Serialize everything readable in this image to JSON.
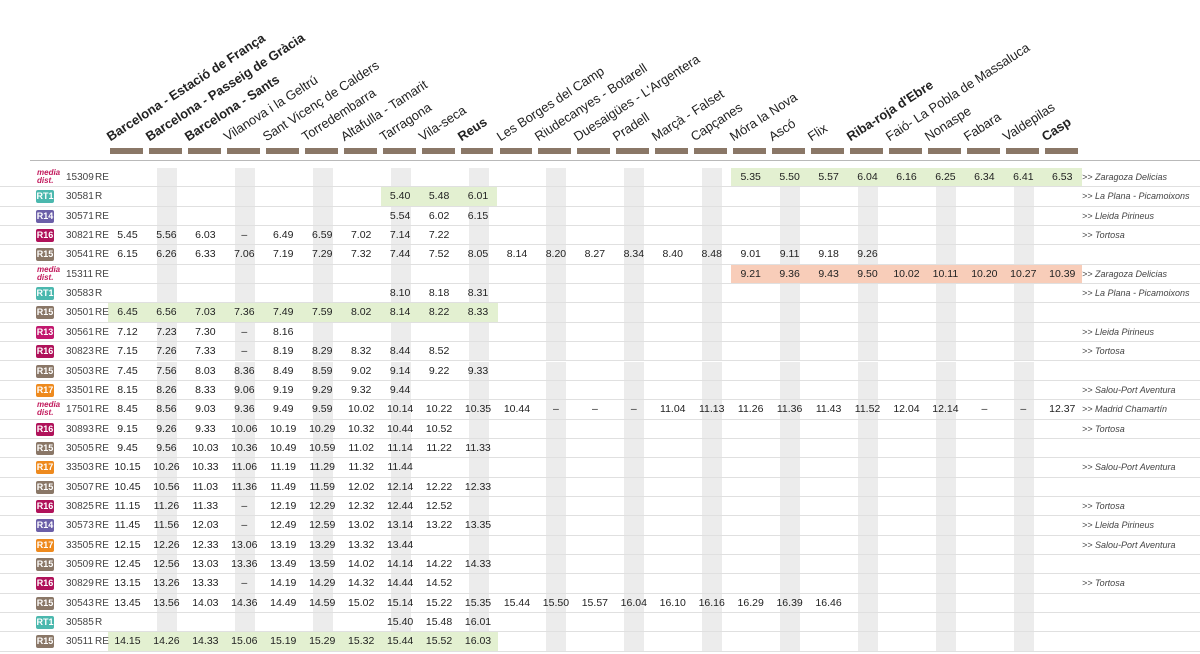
{
  "stations": [
    {
      "name": "Barcelona - Estació de França",
      "bold": true
    },
    {
      "name": "Barcelona - Passeig de Gràcia",
      "bold": true
    },
    {
      "name": "Barcelona - Sants",
      "bold": true
    },
    {
      "name": "Vilanova i la Geltrú",
      "bold": false
    },
    {
      "name": "Sant Vicenç de Calders",
      "bold": false
    },
    {
      "name": "Torredembarra",
      "bold": false
    },
    {
      "name": "Altafulla - Tamarit",
      "bold": false
    },
    {
      "name": "Tarragona",
      "bold": false
    },
    {
      "name": "Vila-seca",
      "bold": false
    },
    {
      "name": "Reus",
      "bold": true
    },
    {
      "name": "Les Borges del Camp",
      "bold": false
    },
    {
      "name": "Riudecanyes - Botarell",
      "bold": false
    },
    {
      "name": "Duesaigües - L'Argentera",
      "bold": false
    },
    {
      "name": "Pradell",
      "bold": false
    },
    {
      "name": "Marçà - Falset",
      "bold": false
    },
    {
      "name": "Capçanes",
      "bold": false
    },
    {
      "name": "Móra la Nova",
      "bold": false
    },
    {
      "name": "Ascó",
      "bold": false
    },
    {
      "name": "Flix",
      "bold": false
    },
    {
      "name": "Riba-roja d'Ebre",
      "bold": true
    },
    {
      "name": "Faió- La Pobla de Massaluca",
      "bold": false
    },
    {
      "name": "Nonaspe",
      "bold": false
    },
    {
      "name": "Fabara",
      "bold": false
    },
    {
      "name": "Valdepilas",
      "bold": false
    },
    {
      "name": "Casp",
      "bold": true
    }
  ],
  "colors": {
    "RT1": "#4bb8ae",
    "R14": "#6b5fa8",
    "R16": "#b0125a",
    "R15": "#8a7767",
    "R13": "#c2186e",
    "R17": "#ee8a1e",
    "cercanias": "#c2185b",
    "green": "#e3f0d1",
    "orange": "#f8cdb9",
    "tick": "#8a7767"
  },
  "ave_logo": {
    "line1": "media",
    "line2": "dist."
  },
  "rows": [
    {
      "line": "cercanias",
      "number": "15309",
      "type": "RE",
      "times": [
        "",
        "",
        "",
        "",
        "",
        "",
        "",
        "",
        "",
        "",
        "",
        "",
        "",
        "",
        "",
        "",
        "5.35",
        "5.50",
        "5.57",
        "6.04",
        "6.16",
        "6.25",
        "6.34",
        "6.41",
        "6.53"
      ],
      "dest": ">> Zaragoza Delicias",
      "hl": "green",
      "hlFrom": 16,
      "hlTo": 24
    },
    {
      "line": "RT1",
      "number": "30581",
      "type": "R",
      "times": [
        "",
        "",
        "",
        "",
        "",
        "",
        "",
        "5.40",
        "5.48",
        "6.01",
        "",
        "",
        "",
        "",
        "",
        "",
        "",
        "",
        "",
        "",
        "",
        "",
        "",
        "",
        ""
      ],
      "dest": ">> La Plana - Picamoixons",
      "hl": "green",
      "hlFrom": 7,
      "hlTo": 9
    },
    {
      "line": "R14",
      "number": "30571",
      "type": "RE",
      "times": [
        "",
        "",
        "",
        "",
        "",
        "",
        "",
        "5.54",
        "6.02",
        "6.15",
        "",
        "",
        "",
        "",
        "",
        "",
        "",
        "",
        "",
        "",
        "",
        "",
        "",
        "",
        ""
      ],
      "dest": ">> Lleida Pirineus",
      "hl": "",
      "hlFrom": 0,
      "hlTo": 0
    },
    {
      "line": "R16",
      "number": "30821",
      "type": "RE",
      "times": [
        "5.45",
        "5.56",
        "6.03",
        "–",
        "6.49",
        "6.59",
        "7.02",
        "7.14",
        "7.22",
        "",
        "",
        "",
        "",
        "",
        "",
        "",
        "",
        "",
        "",
        "",
        "",
        "",
        "",
        "",
        ""
      ],
      "dest": ">> Tortosa",
      "hl": "",
      "hlFrom": 0,
      "hlTo": 0
    },
    {
      "line": "R15",
      "number": "30541",
      "type": "RE",
      "times": [
        "6.15",
        "6.26",
        "6.33",
        "7.06",
        "7.19",
        "7.29",
        "7.32",
        "7.44",
        "7.52",
        "8.05",
        "8.14",
        "8.20",
        "8.27",
        "8.34",
        "8.40",
        "8.48",
        "9.01",
        "9.11",
        "9.18",
        "9.26",
        "",
        "",
        "",
        "",
        ""
      ],
      "dest": "",
      "hl": "",
      "hlFrom": 0,
      "hlTo": 0
    },
    {
      "line": "cercanias",
      "number": "15311",
      "type": "RE",
      "times": [
        "",
        "",
        "",
        "",
        "",
        "",
        "",
        "",
        "",
        "",
        "",
        "",
        "",
        "",
        "",
        "",
        "9.21",
        "9.36",
        "9.43",
        "9.50",
        "10.02",
        "10.11",
        "10.20",
        "10.27",
        "10.39"
      ],
      "dest": ">> Zaragoza Delicias",
      "hl": "orange",
      "hlFrom": 16,
      "hlTo": 24
    },
    {
      "line": "RT1",
      "number": "30583",
      "type": "R",
      "times": [
        "",
        "",
        "",
        "",
        "",
        "",
        "",
        "8.10",
        "8.18",
        "8.31",
        "",
        "",
        "",
        "",
        "",
        "",
        "",
        "",
        "",
        "",
        "",
        "",
        "",
        "",
        ""
      ],
      "dest": ">> La Plana - Picamoixons",
      "hl": "",
      "hlFrom": 0,
      "hlTo": 0
    },
    {
      "line": "R15",
      "number": "30501",
      "type": "RE",
      "times": [
        "6.45",
        "6.56",
        "7.03",
        "7.36",
        "7.49",
        "7.59",
        "8.02",
        "8.14",
        "8.22",
        "8.33",
        "",
        "",
        "",
        "",
        "",
        "",
        "",
        "",
        "",
        "",
        "",
        "",
        "",
        "",
        ""
      ],
      "dest": "",
      "hl": "green",
      "hlFrom": 0,
      "hlTo": 9
    },
    {
      "line": "R13",
      "number": "30561",
      "type": "RE",
      "times": [
        "7.12",
        "7.23",
        "7.30",
        "–",
        "8.16",
        "",
        "",
        "",
        "",
        "",
        "",
        "",
        "",
        "",
        "",
        "",
        "",
        "",
        "",
        "",
        "",
        "",
        "",
        "",
        ""
      ],
      "dest": ">> Lleida Pirineus",
      "hl": "",
      "hlFrom": 0,
      "hlTo": 0
    },
    {
      "line": "R16",
      "number": "30823",
      "type": "RE",
      "times": [
        "7.15",
        "7.26",
        "7.33",
        "–",
        "8.19",
        "8.29",
        "8.32",
        "8.44",
        "8.52",
        "",
        "",
        "",
        "",
        "",
        "",
        "",
        "",
        "",
        "",
        "",
        "",
        "",
        "",
        "",
        ""
      ],
      "dest": ">> Tortosa",
      "hl": "",
      "hlFrom": 0,
      "hlTo": 0
    },
    {
      "line": "R15",
      "number": "30503",
      "type": "RE",
      "times": [
        "7.45",
        "7.56",
        "8.03",
        "8.36",
        "8.49",
        "8.59",
        "9.02",
        "9.14",
        "9.22",
        "9.33",
        "",
        "",
        "",
        "",
        "",
        "",
        "",
        "",
        "",
        "",
        "",
        "",
        "",
        "",
        ""
      ],
      "dest": "",
      "hl": "",
      "hlFrom": 0,
      "hlTo": 0
    },
    {
      "line": "R17",
      "number": "33501",
      "type": "RE",
      "times": [
        "8.15",
        "8.26",
        "8.33",
        "9.06",
        "9.19",
        "9.29",
        "9.32",
        "9.44",
        "",
        "",
        "",
        "",
        "",
        "",
        "",
        "",
        "",
        "",
        "",
        "",
        "",
        "",
        "",
        "",
        ""
      ],
      "dest": ">> Salou-Port Aventura",
      "hl": "",
      "hlFrom": 0,
      "hlTo": 0
    },
    {
      "line": "cercanias",
      "number": "17501",
      "type": "RE",
      "times": [
        "8.45",
        "8.56",
        "9.03",
        "9.36",
        "9.49",
        "9.59",
        "10.02",
        "10.14",
        "10.22",
        "10.35",
        "10.44",
        "–",
        "–",
        "–",
        "11.04",
        "11.13",
        "11.26",
        "11.36",
        "11.43",
        "11.52",
        "12.04",
        "12.14",
        "–",
        "–",
        "12.37"
      ],
      "dest": ">> Madrid Chamartín",
      "hl": "",
      "hlFrom": 0,
      "hlTo": 0
    },
    {
      "line": "R16",
      "number": "30893",
      "type": "RE",
      "times": [
        "9.15",
        "9.26",
        "9.33",
        "10.06",
        "10.19",
        "10.29",
        "10.32",
        "10.44",
        "10.52",
        "",
        "",
        "",
        "",
        "",
        "",
        "",
        "",
        "",
        "",
        "",
        "",
        "",
        "",
        "",
        ""
      ],
      "dest": ">> Tortosa",
      "hl": "",
      "hlFrom": 0,
      "hlTo": 0
    },
    {
      "line": "R15",
      "number": "30505",
      "type": "RE",
      "times": [
        "9.45",
        "9.56",
        "10.03",
        "10.36",
        "10.49",
        "10.59",
        "11.02",
        "11.14",
        "11.22",
        "11.33",
        "",
        "",
        "",
        "",
        "",
        "",
        "",
        "",
        "",
        "",
        "",
        "",
        "",
        "",
        ""
      ],
      "dest": "",
      "hl": "",
      "hlFrom": 0,
      "hlTo": 0
    },
    {
      "line": "R17",
      "number": "33503",
      "type": "RE",
      "times": [
        "10.15",
        "10.26",
        "10.33",
        "11.06",
        "11.19",
        "11.29",
        "11.32",
        "11.44",
        "",
        "",
        "",
        "",
        "",
        "",
        "",
        "",
        "",
        "",
        "",
        "",
        "",
        "",
        "",
        "",
        ""
      ],
      "dest": ">> Salou-Port Aventura",
      "hl": "",
      "hlFrom": 0,
      "hlTo": 0
    },
    {
      "line": "R15",
      "number": "30507",
      "type": "RE",
      "times": [
        "10.45",
        "10.56",
        "11.03",
        "11.36",
        "11.49",
        "11.59",
        "12.02",
        "12.14",
        "12.22",
        "12.33",
        "",
        "",
        "",
        "",
        "",
        "",
        "",
        "",
        "",
        "",
        "",
        "",
        "",
        "",
        ""
      ],
      "dest": "",
      "hl": "",
      "hlFrom": 0,
      "hlTo": 0
    },
    {
      "line": "R16",
      "number": "30825",
      "type": "RE",
      "times": [
        "11.15",
        "11.26",
        "11.33",
        "–",
        "12.19",
        "12.29",
        "12.32",
        "12.44",
        "12.52",
        "",
        "",
        "",
        "",
        "",
        "",
        "",
        "",
        "",
        "",
        "",
        "",
        "",
        "",
        "",
        ""
      ],
      "dest": ">> Tortosa",
      "hl": "",
      "hlFrom": 0,
      "hlTo": 0
    },
    {
      "line": "R14",
      "number": "30573",
      "type": "RE",
      "times": [
        "11.45",
        "11.56",
        "12.03",
        "–",
        "12.49",
        "12.59",
        "13.02",
        "13.14",
        "13.22",
        "13.35",
        "",
        "",
        "",
        "",
        "",
        "",
        "",
        "",
        "",
        "",
        "",
        "",
        "",
        "",
        ""
      ],
      "dest": ">> Lleida Pirineus",
      "hl": "",
      "hlFrom": 0,
      "hlTo": 0
    },
    {
      "line": "R17",
      "number": "33505",
      "type": "RE",
      "times": [
        "12.15",
        "12.26",
        "12.33",
        "13.06",
        "13.19",
        "13.29",
        "13.32",
        "13.44",
        "",
        "",
        "",
        "",
        "",
        "",
        "",
        "",
        "",
        "",
        "",
        "",
        "",
        "",
        "",
        "",
        ""
      ],
      "dest": ">> Salou-Port Aventura",
      "hl": "",
      "hlFrom": 0,
      "hlTo": 0
    },
    {
      "line": "R15",
      "number": "30509",
      "type": "RE",
      "times": [
        "12.45",
        "12.56",
        "13.03",
        "13.36",
        "13.49",
        "13.59",
        "14.02",
        "14.14",
        "14.22",
        "14.33",
        "",
        "",
        "",
        "",
        "",
        "",
        "",
        "",
        "",
        "",
        "",
        "",
        "",
        "",
        ""
      ],
      "dest": "",
      "hl": "",
      "hlFrom": 0,
      "hlTo": 0
    },
    {
      "line": "R16",
      "number": "30829",
      "type": "RE",
      "times": [
        "13.15",
        "13.26",
        "13.33",
        "–",
        "14.19",
        "14.29",
        "14.32",
        "14.44",
        "14.52",
        "",
        "",
        "",
        "",
        "",
        "",
        "",
        "",
        "",
        "",
        "",
        "",
        "",
        "",
        "",
        ""
      ],
      "dest": ">> Tortosa",
      "hl": "",
      "hlFrom": 0,
      "hlTo": 0
    },
    {
      "line": "R15",
      "number": "30543",
      "type": "RE",
      "times": [
        "13.45",
        "13.56",
        "14.03",
        "14.36",
        "14.49",
        "14.59",
        "15.02",
        "15.14",
        "15.22",
        "15.35",
        "15.44",
        "15.50",
        "15.57",
        "16.04",
        "16.10",
        "16.16",
        "16.29",
        "16.39",
        "16.46",
        "",
        "",
        "",
        "",
        "",
        ""
      ],
      "dest": "",
      "hl": "",
      "hlFrom": 0,
      "hlTo": 0
    },
    {
      "line": "RT1",
      "number": "30585",
      "type": "R",
      "times": [
        "",
        "",
        "",
        "",
        "",
        "",
        "",
        "15.40",
        "15.48",
        "16.01",
        "",
        "",
        "",
        "",
        "",
        "",
        "",
        "",
        "",
        "",
        "",
        "",
        "",
        "",
        ""
      ],
      "dest": "",
      "hl": "",
      "hlFrom": 0,
      "hlTo": 0
    },
    {
      "line": "R15",
      "number": "30511",
      "type": "RE",
      "times": [
        "14.15",
        "14.26",
        "14.33",
        "15.06",
        "15.19",
        "15.29",
        "15.32",
        "15.44",
        "15.52",
        "16.03",
        "",
        "",
        "",
        "",
        "",
        "",
        "",
        "",
        "",
        "",
        "",
        "",
        "",
        "",
        ""
      ],
      "dest": "",
      "hl": "green",
      "hlFrom": 0,
      "hlTo": 9
    }
  ]
}
